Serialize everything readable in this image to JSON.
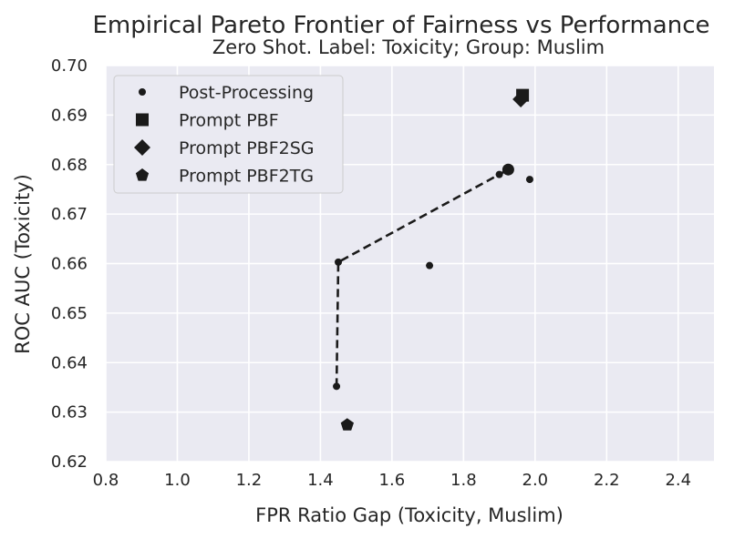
{
  "chart_data": {
    "type": "scatter",
    "title": "Empirical Pareto Frontier of Fairness vs Performance",
    "subtitle": "Zero Shot. Label: Toxicity; Group: Muslim",
    "xlabel": "FPR Ratio Gap (Toxicity, Muslim)",
    "ylabel": "ROC AUC (Toxicity)",
    "xlim": [
      0.8,
      2.5
    ],
    "ylim": [
      0.62,
      0.7
    ],
    "xticks": [
      "0.8",
      "1.0",
      "1.2",
      "1.4",
      "1.6",
      "1.8",
      "2.0",
      "2.2",
      "2.4"
    ],
    "yticks": [
      "0.62",
      "0.63",
      "0.64",
      "0.65",
      "0.66",
      "0.67",
      "0.68",
      "0.69",
      "0.70"
    ],
    "grid": true,
    "legend_position": "top-left",
    "colors": {
      "background": "#eaeaf2",
      "grid": "#ffffff",
      "marker": "#1a1a1a"
    },
    "series": [
      {
        "name": "Post-Processing",
        "marker": "dot",
        "points": [
          {
            "x": 1.445,
            "y": 0.6352
          },
          {
            "x": 1.45,
            "y": 0.6603
          },
          {
            "x": 1.705,
            "y": 0.6596
          },
          {
            "x": 1.9,
            "y": 0.678
          },
          {
            "x": 1.925,
            "y": 0.679,
            "large": true
          },
          {
            "x": 1.985,
            "y": 0.677
          }
        ]
      },
      {
        "name": "Prompt PBF",
        "marker": "square",
        "points": [
          {
            "x": 1.965,
            "y": 0.694
          }
        ]
      },
      {
        "name": "Prompt PBF2SG",
        "marker": "diamond",
        "points": [
          {
            "x": 1.96,
            "y": 0.6932
          }
        ]
      },
      {
        "name": "Prompt PBF2TG",
        "marker": "pentagon",
        "points": [
          {
            "x": 1.475,
            "y": 0.6274
          }
        ]
      }
    ],
    "frontier": {
      "style": "dashed",
      "points": [
        {
          "x": 1.445,
          "y": 0.6352
        },
        {
          "x": 1.45,
          "y": 0.6603
        },
        {
          "x": 1.9,
          "y": 0.678
        },
        {
          "x": 1.925,
          "y": 0.679
        }
      ]
    }
  }
}
